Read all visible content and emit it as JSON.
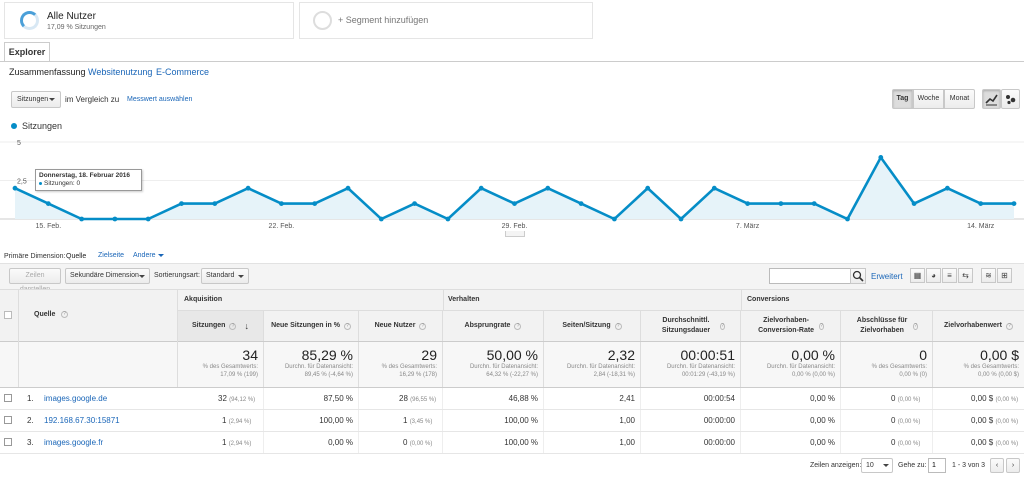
{
  "segments": [
    {
      "title": "Alle Nutzer",
      "subtitle": "17,09 % Sitzungen"
    },
    {
      "title": "+ Segment hinzufügen"
    }
  ],
  "explorer_tab": "Explorer",
  "subtabs": [
    "Zusammenfassung",
    "Websitenutzung",
    "E-Commerce"
  ],
  "controls": {
    "metric_select": "Sitzungen",
    "compare_text": "im Vergleich zu",
    "compare_link": "Messwert auswählen",
    "periods": [
      "Tag",
      "Woche",
      "Monat"
    ],
    "active_period": "Tag"
  },
  "chart_legend": "Sitzungen",
  "tooltip": {
    "date": "Donnerstag, 18. Februar 2016",
    "value": "Sitzungen: 0"
  },
  "chart_data": {
    "type": "area",
    "series": [
      {
        "name": "Sitzungen",
        "values": [
          2,
          1,
          0,
          0,
          0,
          1,
          1,
          2,
          1,
          1,
          2,
          0,
          1,
          0,
          2,
          1,
          2,
          1,
          0,
          2,
          0,
          2,
          1,
          1,
          1,
          0,
          4,
          1,
          2,
          1,
          1
        ]
      }
    ],
    "ylim": [
      0,
      5
    ],
    "yticks": [
      "5",
      "2,5"
    ],
    "xtick_labels": [
      "15. Feb.",
      "22. Feb.",
      "29. Feb.",
      "7. März",
      "14. März"
    ],
    "xtick_index": [
      1,
      8,
      15,
      22,
      29
    ],
    "color": "#058dc7"
  },
  "dimension": {
    "label": "Primäre Dimension:",
    "active": "Quelle",
    "options": [
      "Zielseite",
      "Andere"
    ]
  },
  "toolbar": {
    "plot_rows": "Zeilen darstellen",
    "secondary": "Sekundäre Dimension",
    "sort_label": "Sortierungsart:",
    "sort_value": "Standard",
    "search_placeholder": "",
    "advanced": "Erweitert"
  },
  "groups": [
    "Akquisition",
    "Verhalten",
    "Conversions"
  ],
  "source_header": "Quelle",
  "columns": [
    "Sitzungen",
    "Neue Sitzungen in %",
    "Neue Nutzer",
    "Absprungrate",
    "Seiten/Sitzung",
    "Durchschnittl. Sitzungsdauer",
    "Zielvorhaben-Conversion-Rate",
    "Abschlüsse für Zielvorhaben",
    "Zielvorhabenwert"
  ],
  "totals": [
    {
      "value": "34",
      "sub1": "% des Gesamtwerts:",
      "sub2": "17,09 % (199)"
    },
    {
      "value": "85,29 %",
      "sub1": "Durchn. für Datenansicht:",
      "sub2": "89,45 % (-4,64 %)"
    },
    {
      "value": "29",
      "sub1": "% des Gesamtwerts:",
      "sub2": "16,29 % (178)"
    },
    {
      "value": "50,00 %",
      "sub1": "Durchn. für Datenansicht:",
      "sub2": "64,32 % (-22,27 %)"
    },
    {
      "value": "2,32",
      "sub1": "Durchn. für Datenansicht:",
      "sub2": "2,84 (-18,31 %)"
    },
    {
      "value": "00:00:51",
      "sub1": "Durchn. für Datenansicht:",
      "sub2": "00:01:29 (-43,19 %)"
    },
    {
      "value": "0,00 %",
      "sub1": "Durchn. für Datenansicht:",
      "sub2": "0,00 % (0,00 %)"
    },
    {
      "value": "0",
      "sub1": "% des Gesamtwerts:",
      "sub2": "0,00 % (0)"
    },
    {
      "value": "0,00 $",
      "sub1": "% des Gesamtwerts:",
      "sub2": "0,00 % (0,00 $)"
    }
  ],
  "rows": [
    {
      "num": "1.",
      "source": "images.google.de",
      "sessions": "32",
      "sessions_pct": "(94,12 %)",
      "new_pct": "87,50 %",
      "new_users": "28",
      "new_users_pct": "(96,55 %)",
      "bounce": "46,88 %",
      "pages": "2,41",
      "duration": "00:00:54",
      "conv": "0,00 %",
      "goals": "0",
      "goals_pct": "(0,00 %)",
      "value": "0,00 $",
      "value_pct": "(0,00 %)"
    },
    {
      "num": "2.",
      "source": "192.168.67.30:15871",
      "sessions": "1",
      "sessions_pct": "(2,94 %)",
      "new_pct": "100,00 %",
      "new_users": "1",
      "new_users_pct": "(3,45 %)",
      "bounce": "100,00 %",
      "pages": "1,00",
      "duration": "00:00:00",
      "conv": "0,00 %",
      "goals": "0",
      "goals_pct": "(0,00 %)",
      "value": "0,00 $",
      "value_pct": "(0,00 %)"
    },
    {
      "num": "3.",
      "source": "images.google.fr",
      "sessions": "1",
      "sessions_pct": "(2,94 %)",
      "new_pct": "0,00 %",
      "new_users": "0",
      "new_users_pct": "(0,00 %)",
      "bounce": "100,00 %",
      "pages": "1,00",
      "duration": "00:00:00",
      "conv": "0,00 %",
      "goals": "0",
      "goals_pct": "(0,00 %)",
      "value": "0,00 $",
      "value_pct": "(0,00 %)"
    }
  ],
  "pagination": {
    "show_rows": "Zeilen anzeigen:",
    "rows_value": "10",
    "goto": "Gehe zu:",
    "goto_value": "1",
    "range": "1 - 3 von 3"
  }
}
